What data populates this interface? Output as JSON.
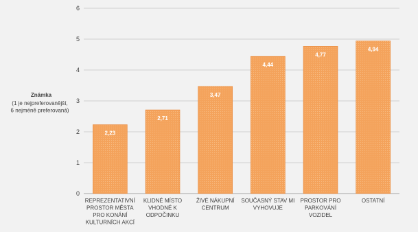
{
  "chart_data": {
    "type": "bar",
    "title": "",
    "ylabel": "Známka",
    "ylabel_note": [
      "(1 je nejpreferovanější,",
      "6 nejméně preferovaná)"
    ],
    "ylim": [
      0,
      6
    ],
    "yticks": [
      0,
      1,
      2,
      3,
      4,
      5,
      6
    ],
    "grid": true,
    "legend": "none",
    "categories": [
      [
        "REPREZENTATIVNÍ",
        "PROSTOR MĚSTA",
        "PRO KONÁNÍ",
        "KULTURNÍCH AKCÍ"
      ],
      [
        "KLIDNÉ MÍSTO",
        "VHODNÉ K",
        "ODPOČINKU"
      ],
      [
        "ŽIVÉ NÁKUPNÍ",
        "CENTRUM"
      ],
      [
        "SOUČASNÝ STAV MI",
        "VYHOVUJE"
      ],
      [
        "PROSTOR PRO",
        "PARKOVÁNÍ",
        "VOZIDEL"
      ],
      [
        "OSTATNÍ"
      ]
    ],
    "values": [
      2.23,
      2.71,
      3.47,
      4.44,
      4.77,
      4.94
    ],
    "data_labels": [
      "2,23",
      "2,71",
      "3,47",
      "4,44",
      "4,77",
      "4,94"
    ],
    "colors": {
      "bar": "#f4a35c",
      "bar_edge": "#e8883a",
      "grid": "#d0d0d0",
      "axis": "#a6a6a6",
      "label": "#ffffff"
    }
  }
}
